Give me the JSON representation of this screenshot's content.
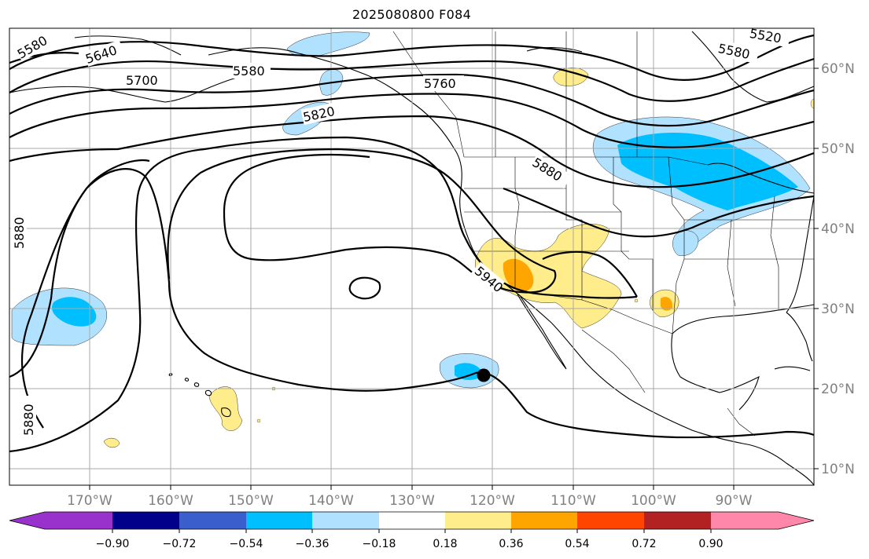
{
  "title": "2025080800 F084",
  "lat_labels": [
    "60°N",
    "50°N",
    "40°N",
    "30°N",
    "20°N",
    "10°N"
  ],
  "lon_labels": [
    "170°W",
    "160°W",
    "150°W",
    "140°W",
    "130°W",
    "120°W",
    "110°W",
    "100°W",
    "90°W"
  ],
  "contour_labels": [
    "5580",
    "5640",
    "5700",
    "5580",
    "5760",
    "5820",
    "5880",
    "5520",
    "5580",
    "5880",
    "5880",
    "5940"
  ],
  "colorbar": {
    "ticks": [
      "−0.90",
      "−0.72",
      "−0.54",
      "−0.36",
      "−0.18",
      "0.18",
      "0.36",
      "0.54",
      "0.72",
      "0.90"
    ],
    "colors": [
      "#9932CC",
      "#00008B",
      "#3A5FCD",
      "#00BFFF",
      "#B0E2FF",
      "#FFFFFF",
      "#FFEC8B",
      "#FFA500",
      "#FF4500",
      "#B22222",
      "#FF88AA"
    ]
  },
  "fill_colors": {
    "light_blue": "#B0E2FF",
    "deep_sky_blue": "#00BFFF",
    "light_yellow": "#FFEC8B",
    "orange": "#FFA500"
  },
  "marker": {
    "name": "storm-center-marker",
    "color": "#000000"
  }
}
